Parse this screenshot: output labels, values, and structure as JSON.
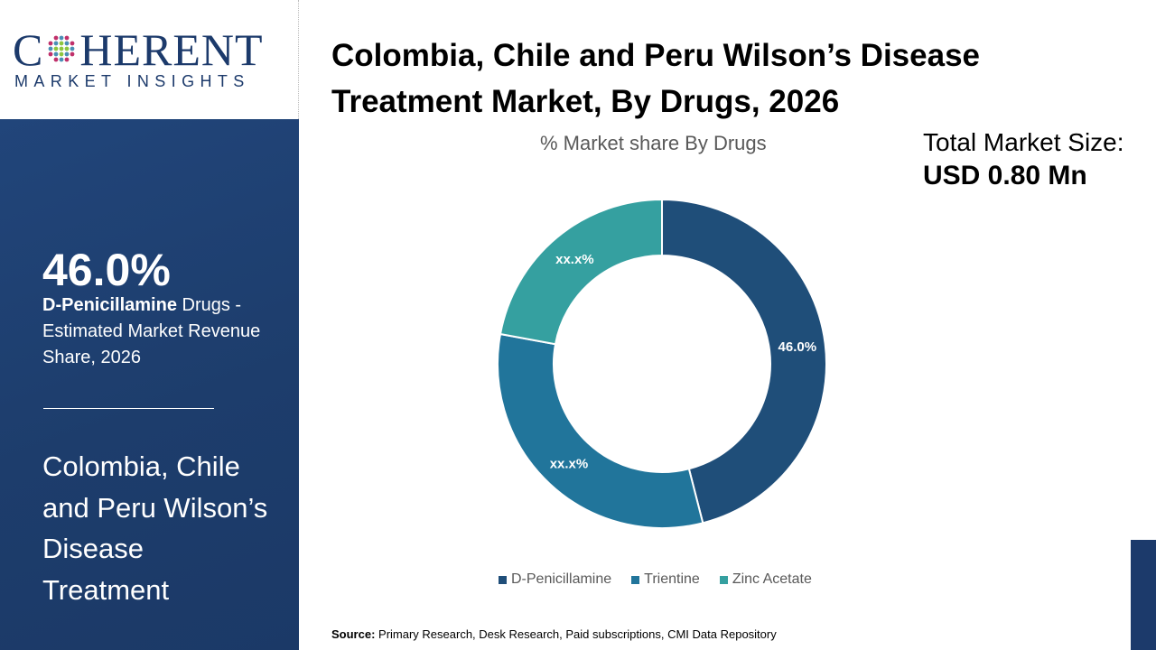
{
  "logo": {
    "main_left": "C",
    "main_right": "HERENT",
    "sub": "MARKET INSIGHTS"
  },
  "panel": {
    "big_value": "46.0%",
    "desc_bold": "D-Penicillamine",
    "desc_rest": " Drugs - Estimated Market Revenue Share, 2026",
    "title": "Colombia, Chile and Peru Wilson’s Disease Treatment"
  },
  "header": {
    "title": "Colombia, Chile and Peru Wilson’s Disease Treatment Market, By Drugs, 2026",
    "total_label": "Total Market Size:",
    "total_value": "USD 0.80 Mn"
  },
  "source": {
    "label": "Source:",
    "text": " Primary Research, Desk Research, Paid subscriptions, CMI Data Repository"
  },
  "chart_data": {
    "type": "pie",
    "donut": true,
    "title": "% Market share By Drugs",
    "categories": [
      "D-Penicillamine",
      "Trientine",
      "Zinc Acetate"
    ],
    "values": [
      46.0,
      31.9,
      22.1
    ],
    "labels": [
      "46.0%",
      "xx.x%",
      "xx.x%"
    ],
    "colors": [
      "#1f4e79",
      "#21759b",
      "#35a0a0"
    ],
    "legend_position": "bottom"
  }
}
